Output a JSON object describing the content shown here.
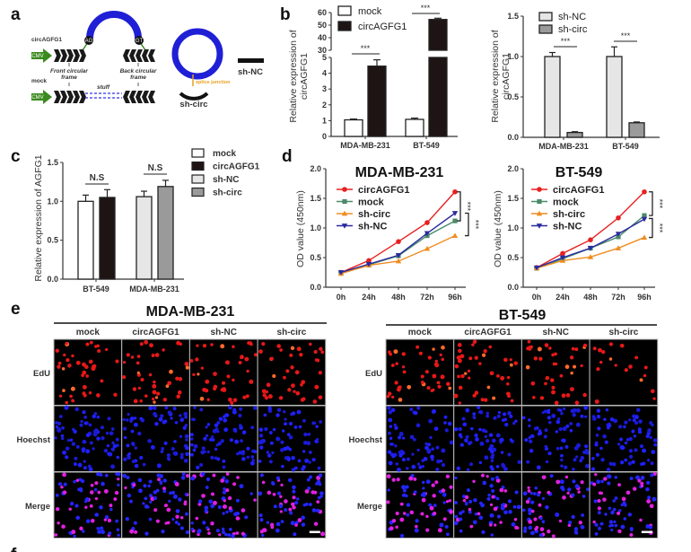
{
  "panels": {
    "a": "a",
    "b": "b",
    "c": "c",
    "d": "d",
    "e": "e",
    "f": "f"
  },
  "diagram": {
    "circ_label": "circAGFG1",
    "mock_label": "mock",
    "cmv": "CMV",
    "ag": "AG",
    "gt": "GT",
    "front_frame_1": "Front circular",
    "front_frame_2": "frame",
    "back_frame_1": "Back circular",
    "back_frame_2": "frame",
    "stuff": "stuff",
    "splice_junction": "splice junction",
    "sh_circ": "sh-circ",
    "sh_nc": "sh-NC",
    "colors": {
      "exon_arc": "#1f1fd6",
      "promoter": "#3a8a1e",
      "junction": "#e8a020"
    }
  },
  "chart_data": [
    {
      "id": "b-left",
      "type": "bar",
      "title": "",
      "xlabel": "",
      "ylabel": "Relative expression of circAGFG1",
      "ylabel_lines": [
        "Relative expression of",
        "circAGFG1"
      ],
      "categories": [
        "MDA-MB-231",
        "BT-549"
      ],
      "broken_axis": true,
      "ylim_lower": [
        0,
        5
      ],
      "ylim_upper": [
        30,
        60
      ],
      "yticks_lower": [
        "0",
        "1",
        "2",
        "3",
        "4",
        "5"
      ],
      "yticks_upper": [
        "30",
        "40",
        "50",
        "60"
      ],
      "series": [
        {
          "name": "mock",
          "values": [
            1.05,
            1.08
          ],
          "errors": [
            0.05,
            0.08
          ],
          "color": "#ffffff"
        },
        {
          "name": "circAGFG1",
          "values": [
            4.45,
            54.5
          ],
          "errors": [
            0.4,
            1.0
          ],
          "color": "#1e1414"
        }
      ],
      "significance": [
        "***",
        "***"
      ],
      "legend": "top-left"
    },
    {
      "id": "b-right",
      "type": "bar",
      "title": "",
      "xlabel": "",
      "ylabel": "Relative expression of circAGFG1",
      "ylabel_lines": [
        "Relative expression of",
        "circAGFG1"
      ],
      "categories": [
        "MDA-MB-231",
        "BT-549"
      ],
      "ylim": [
        0,
        1.5
      ],
      "yticks": [
        "0.0",
        "0.5",
        "1.0",
        "1.5"
      ],
      "series": [
        {
          "name": "sh-NC",
          "values": [
            1.0,
            1.0
          ],
          "errors": [
            0.05,
            0.12
          ],
          "color": "#e6e6e6"
        },
        {
          "name": "sh-circ",
          "values": [
            0.06,
            0.18
          ],
          "errors": [
            0.01,
            0.01
          ],
          "color": "#9a9a9a"
        }
      ],
      "significance": [
        "***",
        "***"
      ],
      "legend": "top-left"
    },
    {
      "id": "c",
      "type": "bar",
      "title": "",
      "xlabel": "",
      "ylabel": "Relative expression of AGFG1",
      "categories": [
        "BT-549",
        "MDA-MB-231"
      ],
      "ylim": [
        0,
        1.5
      ],
      "yticks": [
        "0.0",
        "0.5",
        "1.0",
        "1.5"
      ],
      "bars": [
        {
          "group": "BT-549",
          "series": "mock",
          "value": 1.0,
          "error": 0.08
        },
        {
          "group": "BT-549",
          "series": "circAGFG1",
          "value": 1.05,
          "error": 0.1
        },
        {
          "group": "MDA-MB-231",
          "series": "sh-NC",
          "value": 1.06,
          "error": 0.07
        },
        {
          "group": "MDA-MB-231",
          "series": "sh-circ",
          "value": 1.19,
          "error": 0.08
        }
      ],
      "legend_entries": [
        {
          "name": "mock",
          "color": "#ffffff"
        },
        {
          "name": "circAGFG1",
          "color": "#1e1414"
        },
        {
          "name": "sh-NC",
          "color": "#e6e6e6"
        },
        {
          "name": "sh-circ",
          "color": "#9a9a9a"
        }
      ],
      "significance": [
        "N.S",
        "N.S"
      ],
      "legend": "right"
    },
    {
      "id": "d-left",
      "type": "line",
      "title": "MDA-MB-231",
      "xlabel": "",
      "ylabel": "OD value (450nm)",
      "x": [
        "0h",
        "24h",
        "48h",
        "72h",
        "96h"
      ],
      "ylim": [
        0,
        2.0
      ],
      "yticks": [
        "0.0",
        "0.5",
        "1.0",
        "1.5",
        "2.0"
      ],
      "series": [
        {
          "name": "circAGFG1",
          "marker": "circle",
          "color": "#e82020",
          "values": [
            0.25,
            0.45,
            0.77,
            1.09,
            1.61
          ]
        },
        {
          "name": "mock",
          "marker": "square",
          "color": "#4a8a6a",
          "values": [
            0.25,
            0.38,
            0.53,
            0.87,
            1.12
          ]
        },
        {
          "name": "sh-circ",
          "marker": "triangle-up",
          "color": "#f08c20",
          "values": [
            0.23,
            0.37,
            0.44,
            0.65,
            0.87
          ]
        },
        {
          "name": "sh-NC",
          "marker": "triangle-down",
          "color": "#2a2aa0",
          "values": [
            0.25,
            0.39,
            0.54,
            0.91,
            1.25
          ]
        }
      ],
      "significance": [
        "***",
        "***"
      ],
      "legend": "top-left"
    },
    {
      "id": "d-right",
      "type": "line",
      "title": "BT-549",
      "xlabel": "",
      "ylabel": "OD value (450nm)",
      "x": [
        "0h",
        "24h",
        "48h",
        "72h",
        "96h"
      ],
      "ylim": [
        0,
        2.0
      ],
      "yticks": [
        "0.0",
        "0.5",
        "1.0",
        "1.5",
        "2.0"
      ],
      "series": [
        {
          "name": "circAGFG1",
          "marker": "circle",
          "color": "#e82020",
          "values": [
            0.33,
            0.57,
            0.8,
            1.17,
            1.61
          ]
        },
        {
          "name": "mock",
          "marker": "square",
          "color": "#4a8a6a",
          "values": [
            0.32,
            0.48,
            0.66,
            0.85,
            1.21
          ]
        },
        {
          "name": "sh-circ",
          "marker": "triangle-up",
          "color": "#f08c20",
          "values": [
            0.32,
            0.45,
            0.51,
            0.66,
            0.84
          ]
        },
        {
          "name": "sh-NC",
          "marker": "triangle-down",
          "color": "#2a2aa0",
          "values": [
            0.33,
            0.5,
            0.66,
            0.9,
            1.15
          ]
        }
      ],
      "significance": [
        "***",
        "***"
      ],
      "legend": "top-left"
    }
  ],
  "images": {
    "groups": [
      {
        "title": "MDA-MB-231",
        "columns": [
          "mock",
          "circAGFG1",
          "sh-NC",
          "sh-circ"
        ]
      },
      {
        "title": "BT-549",
        "columns": [
          "mock",
          "circAGFG1",
          "sh-NC",
          "sh-circ"
        ]
      }
    ],
    "rows": [
      "EdU",
      "Hoechst",
      "Merge"
    ]
  }
}
